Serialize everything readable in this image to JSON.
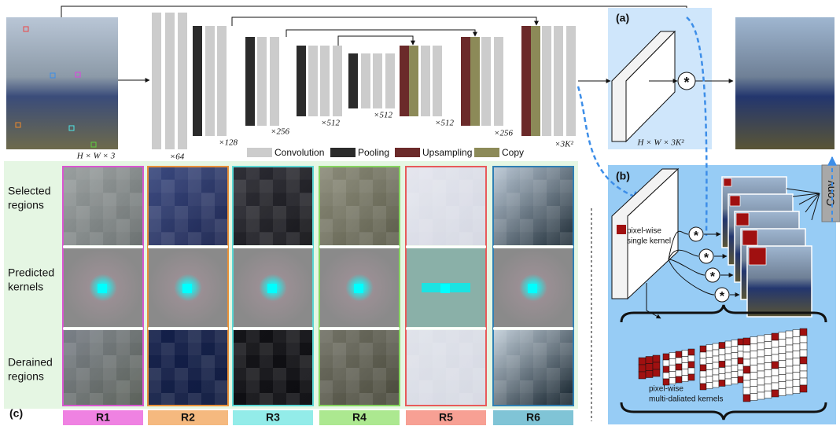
{
  "panels": {
    "a": "(a)",
    "b": "(b)",
    "c": "(c)"
  },
  "input_label": "H × W × 3",
  "channels": [
    "×64",
    "×128",
    "×256",
    "×512",
    "×512",
    "×512",
    "×256",
    "×3K²"
  ],
  "legend": [
    "Convolution",
    "Pooling",
    "Upsampling",
    "Copy"
  ],
  "kernel_map_label": "H × W × 3K²",
  "conv": "Conv",
  "single_kernel": [
    "pixel-wise",
    "single kernel"
  ],
  "multi_kernel": [
    "pixel-wise",
    "multi-daliated kernels"
  ],
  "row_labels": [
    [
      "Selected",
      "regions"
    ],
    [
      "Predicted",
      "kernels"
    ],
    [
      "Derained",
      "regions"
    ]
  ],
  "regions": [
    "R1",
    "R2",
    "R3",
    "R4",
    "R5",
    "R6"
  ]
}
